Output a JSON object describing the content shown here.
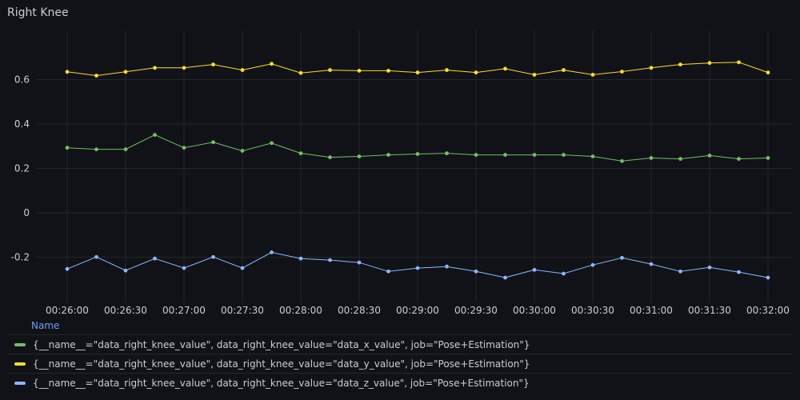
{
  "panel": {
    "title": "Right Knee"
  },
  "legend": {
    "header": "Name"
  },
  "chart_data": {
    "type": "line",
    "title": "Right Knee",
    "x": [
      "00:26:00",
      "00:26:15",
      "00:26:30",
      "00:26:45",
      "00:27:00",
      "00:27:15",
      "00:27:30",
      "00:27:45",
      "00:28:00",
      "00:28:15",
      "00:28:30",
      "00:28:45",
      "00:29:00",
      "00:29:15",
      "00:29:30",
      "00:29:45",
      "00:30:00",
      "00:30:15",
      "00:30:30",
      "00:30:45",
      "00:31:00",
      "00:31:15",
      "00:31:30",
      "00:31:45",
      "00:32:00"
    ],
    "x_ticks": [
      "00:26:00",
      "00:26:30",
      "00:27:00",
      "00:27:30",
      "00:28:00",
      "00:28:30",
      "00:29:00",
      "00:29:30",
      "00:30:00",
      "00:30:30",
      "00:31:00",
      "00:31:30",
      "00:32:00"
    ],
    "y_ticks": [
      0.6,
      0.4,
      0.2,
      0,
      -0.2
    ],
    "y_tick_labels": [
      "0.6",
      "0.4",
      "0.2",
      "0",
      "-0.2"
    ],
    "ylim": [
      -0.39,
      0.77
    ],
    "grid": true,
    "legend_position": "bottom",
    "series": [
      {
        "name": "{__name__=\"data_right_knee_value\", data_right_knee_value=\"data_x_value\", job=\"Pose+Estimation\"}",
        "color": "#73bf69",
        "values": [
          0.293,
          0.286,
          0.286,
          0.351,
          0.293,
          0.318,
          0.279,
          0.314,
          0.268,
          0.25,
          0.254,
          0.261,
          0.265,
          0.268,
          0.261,
          0.261,
          0.261,
          0.261,
          0.254,
          0.233,
          0.247,
          0.243,
          0.258,
          0.243,
          0.247
        ]
      },
      {
        "name": "{__name__=\"data_right_knee_value\", data_right_knee_value=\"data_y_value\", job=\"Pose+Estimation\"}",
        "color": "#fade2a",
        "values": [
          0.635,
          0.618,
          0.635,
          0.653,
          0.653,
          0.668,
          0.643,
          0.671,
          0.63,
          0.643,
          0.64,
          0.64,
          0.632,
          0.643,
          0.632,
          0.649,
          0.622,
          0.643,
          0.622,
          0.636,
          0.653,
          0.668,
          0.675,
          0.678,
          0.632
        ]
      },
      {
        "name": "{__name__=\"data_right_knee_value\", data_right_knee_value=\"data_z_value\", job=\"Pose+Estimation\"}",
        "color": "#8ab8ff",
        "values": [
          -0.253,
          -0.199,
          -0.26,
          -0.206,
          -0.249,
          -0.199,
          -0.249,
          -0.178,
          -0.206,
          -0.213,
          -0.224,
          -0.264,
          -0.249,
          -0.242,
          -0.264,
          -0.292,
          -0.257,
          -0.274,
          -0.235,
          -0.203,
          -0.231,
          -0.264,
          -0.246,
          -0.267,
          -0.292
        ]
      }
    ]
  }
}
